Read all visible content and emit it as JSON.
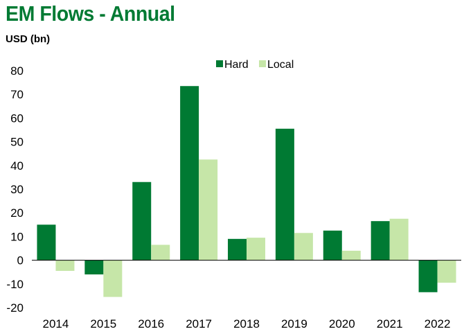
{
  "chart_data": {
    "type": "bar",
    "title": "EM Flows - Annual",
    "ylabel": "USD (bn)",
    "xlabel": "",
    "categories": [
      "2014",
      "2015",
      "2016",
      "2017",
      "2018",
      "2019",
      "2020",
      "2021",
      "2022"
    ],
    "series": [
      {
        "name": "Hard",
        "color": "#007a33",
        "values": [
          15,
          -6,
          33,
          73.5,
          9,
          55.5,
          12.5,
          16.5,
          -13.5
        ]
      },
      {
        "name": "Local",
        "color": "#c6e6a8",
        "values": [
          -4.5,
          -15.5,
          6.5,
          42.5,
          9.5,
          11.5,
          4,
          17.5,
          -9.5
        ]
      }
    ],
    "ylim": [
      -20,
      80
    ],
    "yticks": [
      -20,
      -10,
      0,
      10,
      20,
      30,
      40,
      50,
      60,
      70,
      80
    ],
    "grid": false,
    "legend": "top-center"
  }
}
